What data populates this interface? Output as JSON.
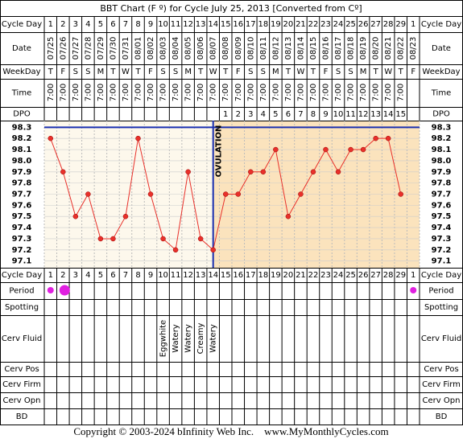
{
  "title": "BBT Chart (F º) for Cycle July 25, 2013  [Converted from Cº]",
  "footer": "Copyright © 2003-2024 bInfinity Web Inc.    www.MyMonthlyCycles.com",
  "row_labels": {
    "cycle_day": "Cycle Day",
    "date": "Date",
    "weekday": "WeekDay",
    "time": "Time",
    "dpo": "DPO",
    "period": "Period",
    "spotting": "Spotting",
    "cerv_fluid": "Cerv Fluid",
    "cerv_pos": "Cerv Pos",
    "cerv_firm": "Cerv Firm",
    "cerv_opn": "Cerv Opn",
    "bd": "BD"
  },
  "chart_data": {
    "type": "line",
    "categories": [
      1,
      2,
      3,
      4,
      5,
      6,
      7,
      8,
      9,
      10,
      11,
      12,
      13,
      14,
      15,
      16,
      17,
      18,
      19,
      20,
      21,
      22,
      23,
      24,
      25,
      26,
      27,
      28,
      29,
      1
    ],
    "dates": [
      "07/25",
      "07/26",
      "07/27",
      "07/28",
      "07/29",
      "07/30",
      "07/31",
      "08/01",
      "08/02",
      "08/03",
      "08/04",
      "08/05",
      "08/06",
      "08/07",
      "08/08",
      "08/09",
      "08/10",
      "08/11",
      "08/12",
      "08/13",
      "08/14",
      "08/15",
      "08/16",
      "08/17",
      "08/18",
      "08/19",
      "08/20",
      "08/21",
      "08/22",
      "08/23"
    ],
    "weekdays": [
      "T",
      "F",
      "S",
      "S",
      "M",
      "T",
      "W",
      "T",
      "F",
      "S",
      "S",
      "M",
      "T",
      "W",
      "T",
      "F",
      "S",
      "S",
      "M",
      "T",
      "W",
      "T",
      "F",
      "S",
      "S",
      "M",
      "T",
      "W",
      "T",
      "F"
    ],
    "times": [
      "7:00",
      "7:00",
      "7:00",
      "7:00",
      "7:00",
      "7:00",
      "7:00",
      "7:00",
      "7:00",
      "7:00",
      "7:00",
      "7:00",
      "7:00",
      "7:00",
      "7:00",
      "7:00",
      "7:00",
      "7:00",
      "7:00",
      "7:00",
      "7:00",
      "7:00",
      "7:00",
      "7:00",
      "7:00",
      "7:00",
      "7:00",
      "7:00",
      "7:00",
      null
    ],
    "dpo": [
      null,
      null,
      null,
      null,
      null,
      null,
      null,
      null,
      null,
      null,
      null,
      null,
      null,
      null,
      1,
      2,
      3,
      4,
      5,
      6,
      7,
      8,
      9,
      10,
      11,
      12,
      13,
      14,
      15,
      null
    ],
    "values": [
      98.2,
      97.9,
      97.5,
      97.7,
      97.3,
      97.3,
      97.5,
      98.2,
      97.7,
      97.3,
      97.2,
      97.9,
      97.3,
      97.2,
      97.7,
      97.7,
      97.9,
      97.9,
      98.1,
      97.5,
      97.7,
      97.9,
      98.1,
      97.9,
      98.1,
      98.1,
      98.2,
      98.2,
      97.7,
      null
    ],
    "color": "#e8302a",
    "ylim": [
      97.04,
      98.36
    ],
    "yticks": [
      98.3,
      98.2,
      98.1,
      {
        "value": 98.0,
        "label": "98.0"
      },
      97.9,
      97.8,
      97.7,
      97.6,
      97.5,
      97.4,
      97.3,
      97.2,
      97.1
    ],
    "coverline": 98.3,
    "ovulation_day": 14,
    "ovulation_label": "OVULATION",
    "period_flow": [
      1,
      2,
      null,
      null,
      null,
      null,
      null,
      null,
      null,
      null,
      null,
      null,
      null,
      null,
      null,
      null,
      null,
      null,
      null,
      null,
      null,
      null,
      null,
      null,
      null,
      null,
      null,
      null,
      null,
      1
    ],
    "cerv_fluid": [
      null,
      null,
      null,
      null,
      null,
      null,
      null,
      null,
      null,
      "Eggwhite",
      "Watery",
      "Watery",
      "Creamy",
      "Watery",
      null,
      null,
      null,
      null,
      null,
      null,
      null,
      null,
      null,
      null,
      null,
      null,
      null,
      null,
      null,
      null
    ]
  }
}
